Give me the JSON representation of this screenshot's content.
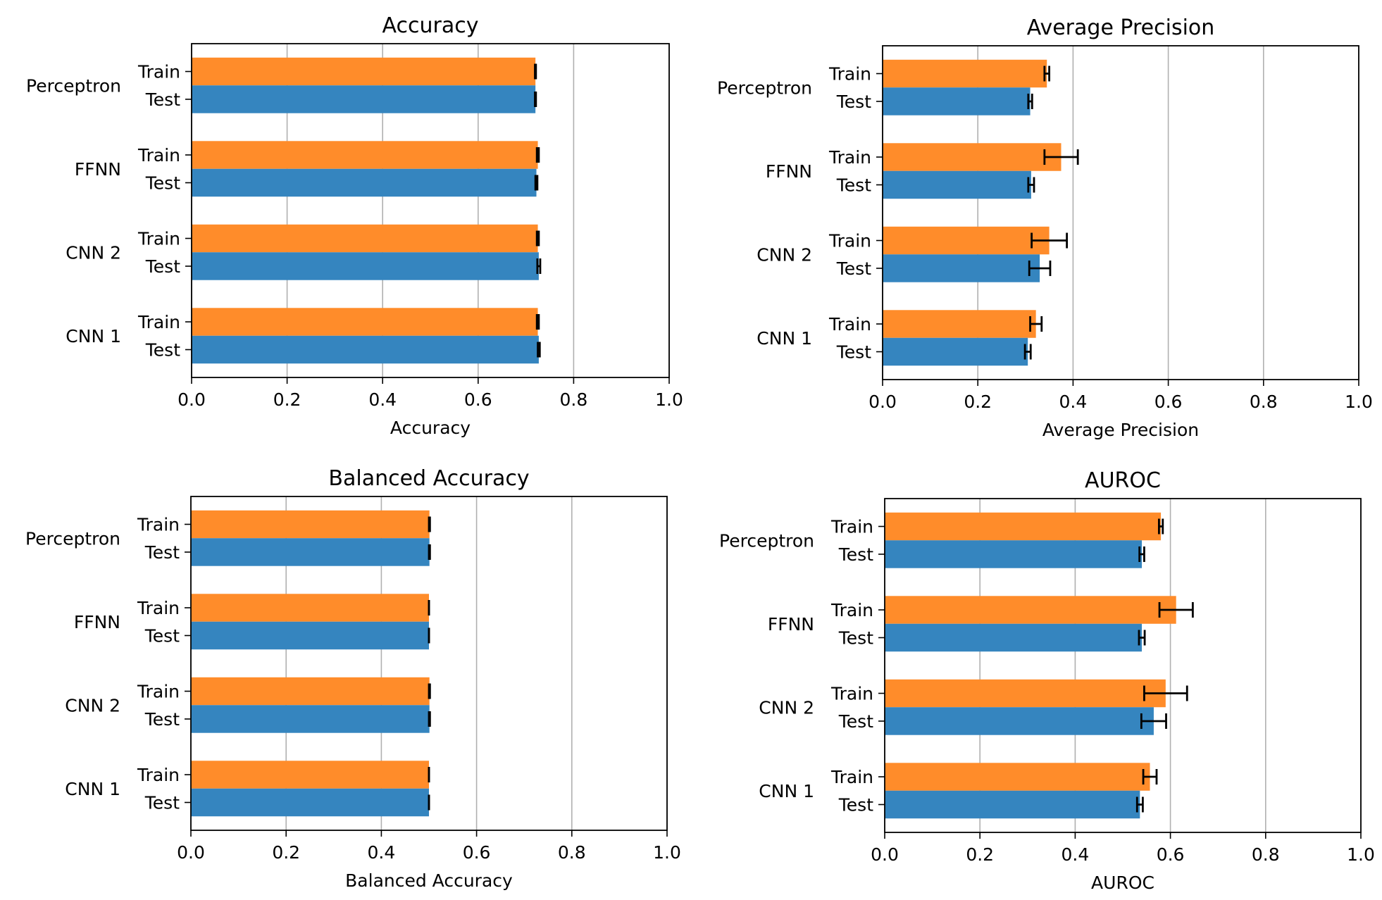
{
  "colors": {
    "train": "#ff8c2a",
    "test": "#3585bf",
    "grid": "#b0b0b0",
    "errorbar": "#000000"
  },
  "chart_data": [
    {
      "type": "bar",
      "orientation": "horizontal",
      "title": "Accuracy",
      "xlabel": "Accuracy",
      "xlim": [
        0,
        1.0
      ],
      "xticks": [
        "0.0",
        "0.2",
        "0.4",
        "0.6",
        "0.8",
        "1.0"
      ],
      "grid": "x",
      "groups": [
        "Perceptron",
        "FFNN",
        "CNN 2",
        "CNN 1"
      ],
      "bar_labels": [
        "Train",
        "Test"
      ],
      "series": [
        {
          "label": "Train",
          "values": [
            0.72,
            0.725,
            0.725,
            0.725
          ],
          "errors": [
            0.001,
            0.002,
            0.002,
            0.002
          ]
        },
        {
          "label": "Test",
          "values": [
            0.72,
            0.722,
            0.727,
            0.727
          ],
          "errors": [
            0.001,
            0.002,
            0.003,
            0.002
          ]
        }
      ]
    },
    {
      "type": "bar",
      "orientation": "horizontal",
      "title": "Average Precision",
      "xlabel": "Average Precision",
      "xlim": [
        0,
        1.0
      ],
      "xticks": [
        "0.0",
        "0.2",
        "0.4",
        "0.6",
        "0.8",
        "1.0"
      ],
      "grid": "x",
      "groups": [
        "Perceptron",
        "FFNN",
        "CNN 2",
        "CNN 1"
      ],
      "bar_labels": [
        "Train",
        "Test"
      ],
      "series": [
        {
          "label": "Train",
          "values": [
            0.345,
            0.375,
            0.35,
            0.322
          ],
          "errors": [
            0.005,
            0.035,
            0.037,
            0.012
          ]
        },
        {
          "label": "Test",
          "values": [
            0.31,
            0.312,
            0.33,
            0.305
          ],
          "errors": [
            0.004,
            0.006,
            0.022,
            0.006
          ]
        }
      ]
    },
    {
      "type": "bar",
      "orientation": "horizontal",
      "title": "Balanced Accuracy",
      "xlabel": "Balanced Accuracy",
      "xlim": [
        0,
        1.0
      ],
      "xticks": [
        "0.0",
        "0.2",
        "0.4",
        "0.6",
        "0.8",
        "1.0"
      ],
      "grid": "x",
      "groups": [
        "Perceptron",
        "FFNN",
        "CNN 2",
        "CNN 1"
      ],
      "bar_labels": [
        "Train",
        "Test"
      ],
      "series": [
        {
          "label": "Train",
          "values": [
            0.501,
            0.5,
            0.501,
            0.5
          ],
          "errors": [
            0.001,
            0.0,
            0.001,
            0.0
          ]
        },
        {
          "label": "Test",
          "values": [
            0.501,
            0.5,
            0.501,
            0.5
          ],
          "errors": [
            0.001,
            0.0,
            0.001,
            0.0
          ]
        }
      ]
    },
    {
      "type": "bar",
      "orientation": "horizontal",
      "title": "AUROC",
      "xlabel": "AUROC",
      "xlim": [
        0,
        1.0
      ],
      "xticks": [
        "0.0",
        "0.2",
        "0.4",
        "0.6",
        "0.8",
        "1.0"
      ],
      "grid": "x",
      "groups": [
        "Perceptron",
        "FFNN",
        "CNN 2",
        "CNN 1"
      ],
      "bar_labels": [
        "Train",
        "Test"
      ],
      "series": [
        {
          "label": "Train",
          "values": [
            0.58,
            0.612,
            0.59,
            0.557
          ],
          "errors": [
            0.004,
            0.035,
            0.045,
            0.014
          ]
        },
        {
          "label": "Test",
          "values": [
            0.54,
            0.54,
            0.565,
            0.536
          ],
          "errors": [
            0.005,
            0.006,
            0.026,
            0.006
          ]
        }
      ]
    }
  ]
}
